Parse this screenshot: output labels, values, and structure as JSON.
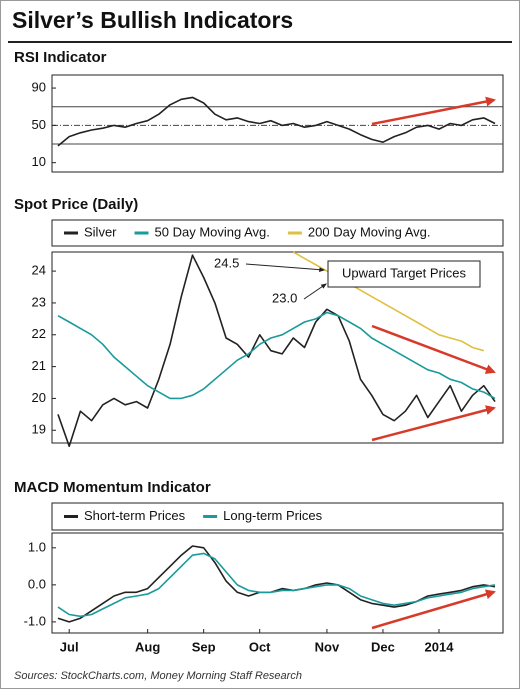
{
  "title": "Silver’s Bullish Indicators",
  "source": "Sources: StockCharts.com, Money Morning Staff Research",
  "chart_data": [
    {
      "type": "line",
      "title": "RSI Indicator",
      "color": "#222222",
      "values": [
        28,
        38,
        42,
        45,
        47,
        50,
        48,
        52,
        55,
        62,
        72,
        78,
        80,
        74,
        62,
        56,
        58,
        54,
        52,
        55,
        50,
        52,
        48,
        50,
        54,
        50,
        46,
        40,
        35,
        32,
        38,
        42,
        48,
        50,
        46,
        52,
        50,
        56,
        58,
        52
      ],
      "ylim": [
        0,
        104
      ],
      "yticks": [
        10,
        50,
        90
      ],
      "hlines": [
        30,
        70
      ],
      "dashed_hlines": [
        50
      ]
    },
    {
      "type": "line",
      "title": "Spot Price (Daily)",
      "series": [
        {
          "name": "Silver",
          "color": "#222222",
          "values": [
            19.5,
            18.5,
            19.6,
            19.3,
            19.8,
            20.0,
            19.8,
            19.9,
            19.7,
            20.6,
            21.7,
            23.2,
            24.5,
            23.8,
            23.0,
            21.9,
            21.7,
            21.3,
            22.0,
            21.5,
            21.4,
            21.9,
            21.6,
            22.4,
            22.8,
            22.6,
            21.8,
            20.6,
            20.1,
            19.5,
            19.3,
            19.6,
            20.1,
            19.4,
            19.9,
            20.4,
            19.6,
            20.1,
            20.4,
            19.9
          ]
        },
        {
          "name": "50 Day Moving Avg.",
          "color": "#1a9a9a",
          "values": [
            22.6,
            22.4,
            22.2,
            22.0,
            21.7,
            21.3,
            21.0,
            20.7,
            20.4,
            20.2,
            20.0,
            20.0,
            20.1,
            20.3,
            20.6,
            20.9,
            21.2,
            21.4,
            21.7,
            21.9,
            22.0,
            22.2,
            22.4,
            22.5,
            22.7,
            22.6,
            22.4,
            22.2,
            21.9,
            21.7,
            21.5,
            21.3,
            21.1,
            20.9,
            20.8,
            20.6,
            20.5,
            20.3,
            20.2,
            20.0
          ]
        },
        {
          "name": "200 Day Moving Avg.",
          "color": "#e0c040",
          "values": [
            null,
            null,
            null,
            null,
            null,
            null,
            null,
            null,
            null,
            null,
            null,
            null,
            null,
            null,
            null,
            null,
            null,
            null,
            null,
            null,
            null,
            24.6,
            24.4,
            24.2,
            24.0,
            23.8,
            23.6,
            23.4,
            23.2,
            23.0,
            22.8,
            22.6,
            22.4,
            22.2,
            22.0,
            21.9,
            21.8,
            21.6,
            21.5,
            null
          ]
        }
      ],
      "ylim": [
        18.6,
        24.6
      ],
      "yticks": [
        19,
        20,
        21,
        22,
        23,
        24
      ],
      "annotations": [
        "24.5",
        "23.0",
        "Upward Target Prices"
      ]
    },
    {
      "type": "line",
      "title": "MACD Momentum Indicator",
      "categories": [
        null,
        "Jul",
        null,
        null,
        null,
        null,
        null,
        null,
        "Aug",
        null,
        null,
        null,
        null,
        "Sep",
        null,
        null,
        null,
        null,
        "Oct",
        null,
        null,
        null,
        null,
        null,
        "Nov",
        null,
        null,
        null,
        null,
        "Dec",
        null,
        null,
        null,
        null,
        "2014",
        null,
        null,
        null,
        null,
        null
      ],
      "series": [
        {
          "name": "Short-term Prices",
          "color": "#222222",
          "values": [
            -0.9,
            -1.0,
            -0.9,
            -0.7,
            -0.5,
            -0.3,
            -0.2,
            -0.2,
            -0.1,
            0.2,
            0.5,
            0.8,
            1.05,
            1.0,
            0.6,
            0.1,
            -0.2,
            -0.3,
            -0.2,
            -0.2,
            -0.1,
            -0.15,
            -0.1,
            0.0,
            0.05,
            0.0,
            -0.2,
            -0.4,
            -0.5,
            -0.55,
            -0.6,
            -0.55,
            -0.45,
            -0.3,
            -0.25,
            -0.2,
            -0.15,
            -0.05,
            0.0,
            -0.05
          ]
        },
        {
          "name": "Long-term Prices",
          "color": "#1a9a9a",
          "values": [
            -0.6,
            -0.8,
            -0.85,
            -0.8,
            -0.65,
            -0.5,
            -0.35,
            -0.3,
            -0.25,
            -0.1,
            0.2,
            0.5,
            0.8,
            0.85,
            0.7,
            0.35,
            0.0,
            -0.15,
            -0.2,
            -0.2,
            -0.15,
            -0.15,
            -0.1,
            -0.05,
            0.0,
            0.0,
            -0.1,
            -0.3,
            -0.4,
            -0.5,
            -0.55,
            -0.5,
            -0.45,
            -0.35,
            -0.3,
            -0.25,
            -0.2,
            -0.1,
            -0.05,
            0.0
          ]
        }
      ],
      "ylim": [
        -1.3,
        1.4
      ],
      "yticks": [
        {
          "value": 1,
          "label": "1.0"
        },
        {
          "value": 0,
          "label": "0.0"
        },
        {
          "value": -1,
          "label": "-1.0"
        }
      ]
    }
  ]
}
